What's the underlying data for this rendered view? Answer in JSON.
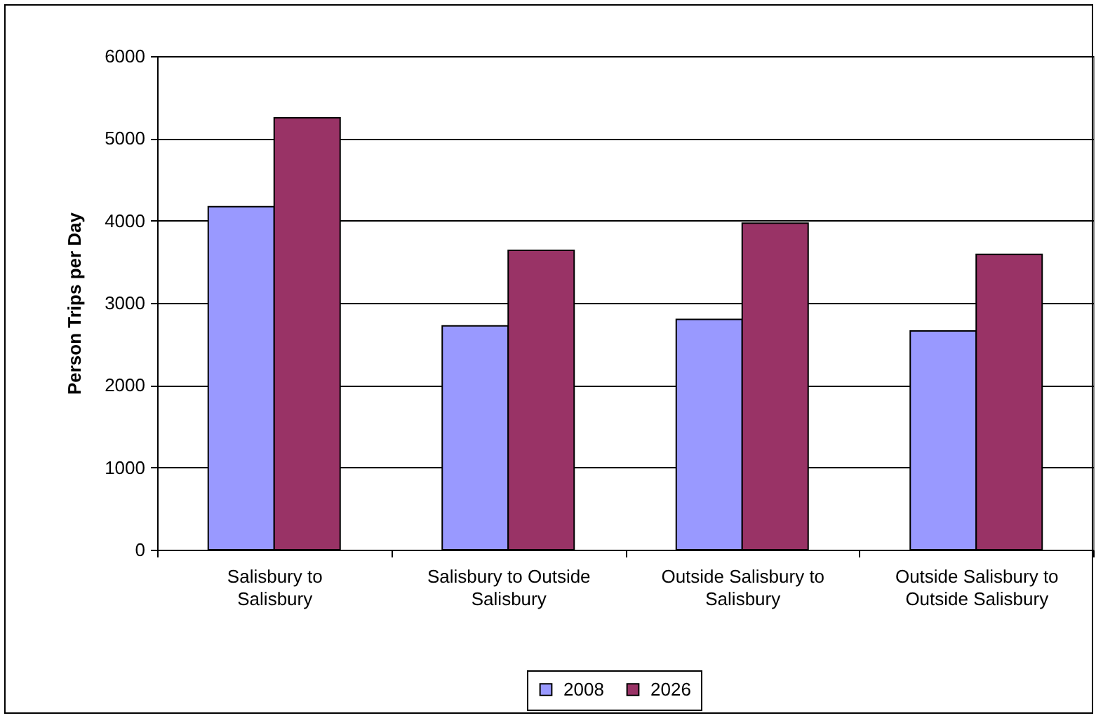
{
  "chart_data": {
    "type": "bar",
    "ylabel": "Person Trips per Day",
    "categories": [
      "Salisbury to Salisbury",
      "Salisbury to Outside Salisbury",
      "Outside Salisbury to Salisbury",
      "Outside Salisbury to Outside Salisbury"
    ],
    "series": [
      {
        "name": "2008",
        "color": "#9999ff",
        "values": [
          4170,
          2720,
          2800,
          2660
        ]
      },
      {
        "name": "2026",
        "color": "#993366",
        "values": [
          5250,
          3640,
          3970,
          3590
        ]
      }
    ],
    "ylim": [
      0,
      6000
    ],
    "yticks": [
      0,
      1000,
      2000,
      3000,
      4000,
      5000,
      6000
    ],
    "grid": "y",
    "legend": "bottom"
  }
}
